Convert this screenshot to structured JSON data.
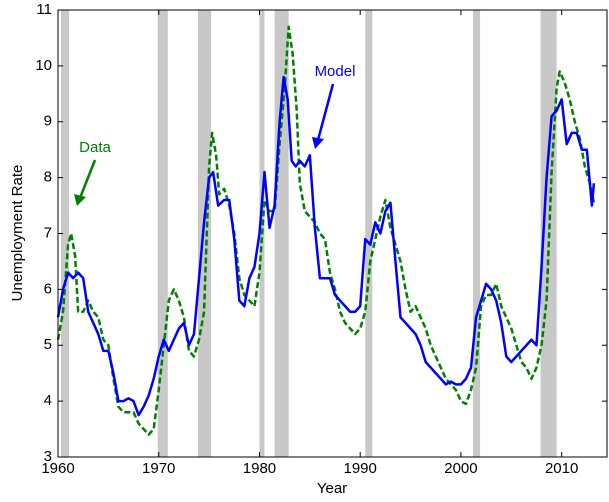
{
  "chart_data": {
    "type": "line",
    "x_label": "Year",
    "y_label": "Unemployment Rate",
    "xlim": [
      1960,
      2014.5
    ],
    "ylim": [
      3,
      11
    ],
    "xticks": [
      1960,
      1970,
      1980,
      1990,
      2000,
      2010
    ],
    "yticks": [
      3,
      4,
      5,
      6,
      7,
      8,
      9,
      10,
      11
    ],
    "shaded_regions": [
      [
        1960.3,
        1961.1
      ],
      [
        1969.9,
        1970.9
      ],
      [
        1973.9,
        1975.2
      ],
      [
        1980.0,
        1980.5
      ],
      [
        1981.5,
        1982.9
      ],
      [
        1990.5,
        1991.2
      ],
      [
        2001.2,
        2001.9
      ],
      [
        2007.9,
        2009.5
      ]
    ],
    "shade_color": "#c8c8c8",
    "series": [
      {
        "name": "Data",
        "color": "#008000",
        "dashed": true,
        "x": [
          1960,
          1960.5,
          1961,
          1961.3,
          1961.7,
          1962,
          1962.5,
          1963,
          1963.5,
          1964,
          1964.5,
          1965,
          1965.5,
          1966,
          1966.5,
          1967,
          1967.5,
          1968,
          1968.5,
          1969,
          1969.5,
          1970,
          1970.5,
          1971,
          1971.5,
          1972,
          1972.5,
          1973,
          1973.5,
          1974,
          1974.5,
          1975,
          1975.3,
          1975.7,
          1976,
          1976.5,
          1977,
          1977.5,
          1978,
          1978.5,
          1979,
          1979.5,
          1980,
          1980.5,
          1981,
          1981.5,
          1982,
          1982.5,
          1982.9,
          1983.3,
          1983.7,
          1984,
          1984.5,
          1985,
          1985.5,
          1986,
          1986.5,
          1987,
          1987.5,
          1988,
          1988.5,
          1989,
          1989.5,
          1990,
          1990.5,
          1991,
          1991.5,
          1992,
          1992.5,
          1993,
          1993.5,
          1994,
          1994.5,
          1995,
          1995.5,
          1996,
          1996.5,
          1997,
          1997.5,
          1998,
          1998.5,
          1999,
          1999.5,
          2000,
          2000.5,
          2001,
          2001.5,
          2002,
          2002.5,
          2003,
          2003.5,
          2004,
          2004.5,
          2005,
          2005.5,
          2006,
          2006.5,
          2007,
          2007.5,
          2008,
          2008.5,
          2009,
          2009.5,
          2009.8,
          2010.3,
          2010.8,
          2011.3,
          2011.8,
          2012.3,
          2012.8,
          2013.2
        ],
        "values": [
          5.1,
          5.6,
          6.8,
          7.0,
          6.6,
          5.6,
          5.6,
          5.8,
          5.6,
          5.5,
          5.1,
          5.0,
          4.4,
          3.9,
          3.8,
          3.8,
          3.8,
          3.6,
          3.5,
          3.4,
          3.5,
          4.2,
          5.0,
          5.8,
          6.0,
          5.8,
          5.5,
          4.9,
          4.8,
          5.1,
          5.6,
          8.2,
          8.8,
          8.4,
          7.7,
          7.8,
          7.5,
          7.0,
          6.2,
          5.9,
          5.8,
          5.7,
          6.3,
          7.6,
          7.4,
          7.4,
          8.6,
          9.6,
          10.7,
          10.2,
          9.2,
          7.9,
          7.4,
          7.3,
          7.2,
          7.0,
          6.9,
          6.3,
          6.0,
          5.6,
          5.4,
          5.3,
          5.2,
          5.3,
          5.6,
          6.5,
          6.9,
          7.3,
          7.6,
          7.1,
          6.8,
          6.5,
          6.0,
          5.6,
          5.7,
          5.5,
          5.3,
          5.0,
          4.8,
          4.6,
          4.4,
          4.3,
          4.2,
          4.0,
          3.95,
          4.2,
          4.6,
          5.7,
          5.9,
          5.9,
          6.1,
          5.7,
          5.5,
          5.3,
          5.0,
          4.7,
          4.6,
          4.4,
          4.6,
          5.0,
          5.8,
          8.1,
          9.6,
          9.9,
          9.7,
          9.4,
          9.0,
          8.7,
          8.2,
          7.9,
          7.55
        ]
      },
      {
        "name": "Model",
        "color": "#0000ff",
        "dashed": false,
        "x": [
          1960,
          1960.5,
          1961,
          1961.5,
          1962,
          1962.5,
          1963,
          1963.5,
          1964,
          1964.5,
          1965,
          1965.5,
          1966,
          1966.5,
          1967,
          1967.5,
          1968,
          1968.5,
          1969,
          1969.5,
          1970,
          1970.5,
          1971,
          1971.5,
          1972,
          1972.5,
          1973,
          1973.5,
          1974,
          1974.5,
          1975,
          1975.4,
          1975.9,
          1976.5,
          1977,
          1977.5,
          1978,
          1978.5,
          1979,
          1979.5,
          1980,
          1980.5,
          1981,
          1981.5,
          1982,
          1982.4,
          1982.8,
          1983.2,
          1983.6,
          1984,
          1984.5,
          1985,
          1985.5,
          1986,
          1986.5,
          1987,
          1987.5,
          1988,
          1988.5,
          1989,
          1989.5,
          1990,
          1990.5,
          1991,
          1991.5,
          1992,
          1992.5,
          1993,
          1993.5,
          1994,
          1994.5,
          1995,
          1995.5,
          1996,
          1996.5,
          1997,
          1997.5,
          1998,
          1998.5,
          1999,
          1999.5,
          2000,
          2000.5,
          2001,
          2001.5,
          2002,
          2002.5,
          2003,
          2003.5,
          2004,
          2004.5,
          2005,
          2005.5,
          2006,
          2006.5,
          2007,
          2007.5,
          2008,
          2008.5,
          2009,
          2009.5,
          2010,
          2010.5,
          2011,
          2011.5,
          2012,
          2012.5,
          2013,
          2013.2
        ],
        "values": [
          5.5,
          6.0,
          6.3,
          6.2,
          6.3,
          6.2,
          5.6,
          5.4,
          5.2,
          4.9,
          4.9,
          4.5,
          4.0,
          4.0,
          4.05,
          4.0,
          3.75,
          3.9,
          4.1,
          4.4,
          4.8,
          5.1,
          4.9,
          5.1,
          5.3,
          5.4,
          5.0,
          5.2,
          6.2,
          7.2,
          8.0,
          8.1,
          7.5,
          7.6,
          7.6,
          6.9,
          5.8,
          5.7,
          6.2,
          6.4,
          7.0,
          8.1,
          7.1,
          7.5,
          9.0,
          9.8,
          9.4,
          8.3,
          8.2,
          8.3,
          8.2,
          8.4,
          7.1,
          6.2,
          6.2,
          6.2,
          5.9,
          5.8,
          5.7,
          5.6,
          5.6,
          5.7,
          6.9,
          6.8,
          7.2,
          7.0,
          7.4,
          7.55,
          6.5,
          5.5,
          5.4,
          5.3,
          5.2,
          5.0,
          4.7,
          4.6,
          4.5,
          4.4,
          4.3,
          4.35,
          4.3,
          4.3,
          4.4,
          4.6,
          5.5,
          5.8,
          6.1,
          6.0,
          5.8,
          5.4,
          4.8,
          4.7,
          4.8,
          4.9,
          5.0,
          5.1,
          5.0,
          6.4,
          8.0,
          9.1,
          9.2,
          9.4,
          8.6,
          8.8,
          8.8,
          8.5,
          8.5,
          7.5,
          7.9
        ]
      }
    ]
  }
}
